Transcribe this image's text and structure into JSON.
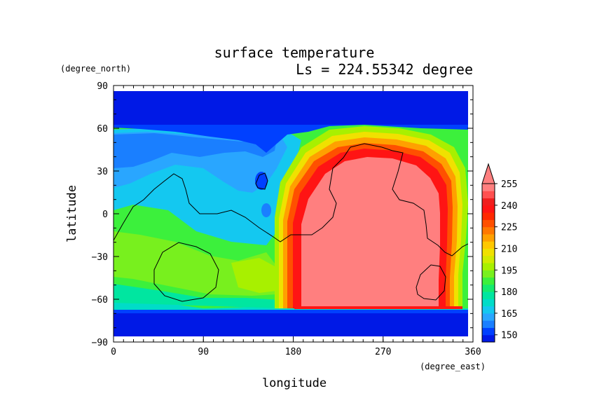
{
  "chart_data": {
    "type": "heatmap",
    "title": "surface temperature",
    "subtitle": "Ls = 224.55342 degree",
    "xlabel": "longitude",
    "ylabel": "latitude",
    "x_unit": "(degree_east)",
    "y_unit": "(degree_north)",
    "xlim": [
      0,
      360
    ],
    "ylim": [
      -90,
      90
    ],
    "x_ticks": [
      "0",
      "90",
      "180",
      "270",
      "360"
    ],
    "y_ticks": [
      "90",
      "60",
      "30",
      "0",
      "−30",
      "−60",
      "−90"
    ],
    "colorbar": {
      "levels": [
        145,
        150,
        155,
        160,
        165,
        170,
        175,
        180,
        185,
        190,
        195,
        200,
        205,
        210,
        215,
        220,
        225,
        230,
        235,
        240,
        245,
        250,
        255
      ],
      "labels": [
        "150",
        "165",
        "180",
        "195",
        "210",
        "225",
        "240",
        "255"
      ],
      "colors": [
        "#0019e6",
        "#0040ff",
        "#1a7fff",
        "#29a6ff",
        "#14c8f0",
        "#00dcc8",
        "#00e6a0",
        "#14eb6e",
        "#3cf03c",
        "#78f01e",
        "#a8f000",
        "#d2eb00",
        "#f0e100",
        "#ffc800",
        "#ffa000",
        "#ff7800",
        "#ff5000",
        "#ff2800",
        "#ff1414",
        "#f01e1e",
        "#ff5050",
        "#ff7f7f"
      ],
      "extend_max": true
    },
    "note": "Contour-filled field of surface temperature (K) by longitude and latitude; values range ~145 to >255, warmest over 180–330°E between 45°N and 65°S, coldest poleward of 62°N and 68°S."
  }
}
